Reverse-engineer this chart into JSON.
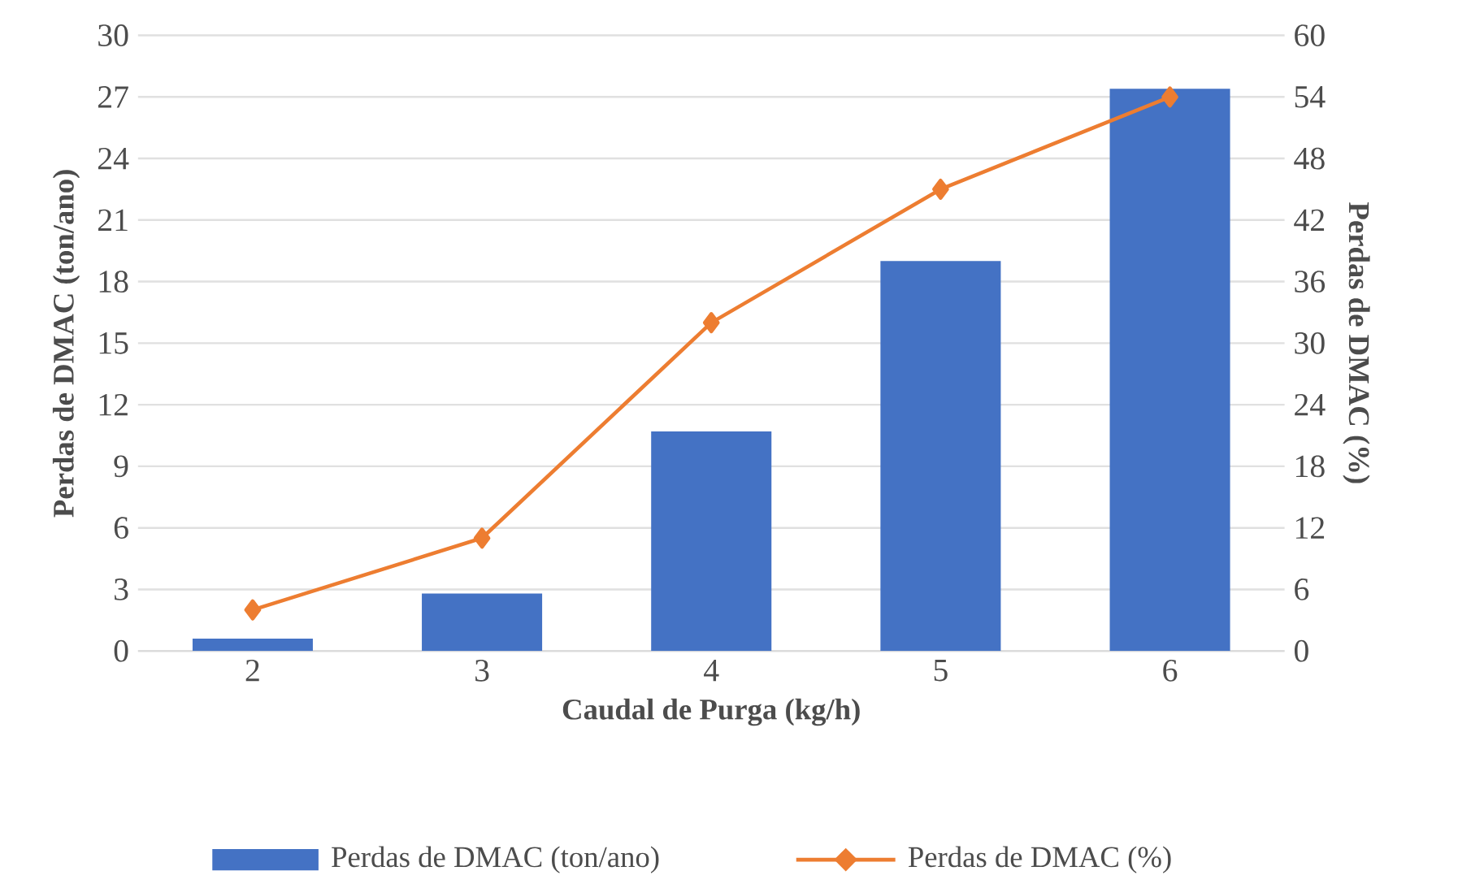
{
  "chart_data": {
    "type": "bar",
    "xlabel": "Caudal de Purga (kg/h)",
    "ylabel": "Perdas de DMAC (ton/ano)",
    "y2label": "Perdas de DMAC (%)",
    "categories": [
      "2",
      "3",
      "4",
      "5",
      "6"
    ],
    "series": [
      {
        "name": "Perdas de DMAC (ton/ano)",
        "color": "#4472c4",
        "values": [
          0.6,
          2.8,
          10.7,
          19.0,
          27.4
        ]
      },
      {
        "name": "Perdas de DMAC (%)",
        "type": "line",
        "axis": "y2",
        "color": "#ed7d31",
        "marker": "diamond",
        "values": [
          4,
          11,
          32,
          45,
          54
        ]
      }
    ],
    "ylim": [
      0,
      30
    ],
    "yticks": [
      0,
      3,
      6,
      9,
      12,
      15,
      18,
      21,
      24,
      27,
      30
    ],
    "y2lim": [
      0,
      60
    ],
    "y2ticks": [
      0,
      6,
      12,
      18,
      24,
      30,
      36,
      42,
      48,
      54,
      60
    ],
    "grid": "y",
    "legend": "bottom"
  }
}
